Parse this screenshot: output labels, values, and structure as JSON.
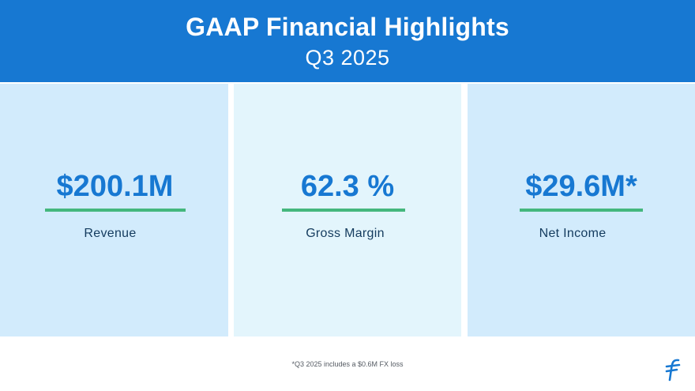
{
  "header": {
    "title": "GAAP Financial Highlights",
    "subtitle": "Q3 2025"
  },
  "metrics": [
    {
      "value": "$200.1M",
      "label": "Revenue"
    },
    {
      "value": "62.3 %",
      "label": "Gross Margin"
    },
    {
      "value": "$29.6M*",
      "label": "Net Income"
    }
  ],
  "footnote": "*Q3 2025 includes a $0.6M FX loss",
  "colors": {
    "header_bg": "#1778d2",
    "panel_light": "#d2ebfc",
    "panel_lighter": "#e3f5fc",
    "value_text": "#1778d2",
    "accent_line": "#44b77d",
    "label_text": "#143b5e"
  },
  "icons": {
    "logo": "brand-logo-icon"
  }
}
